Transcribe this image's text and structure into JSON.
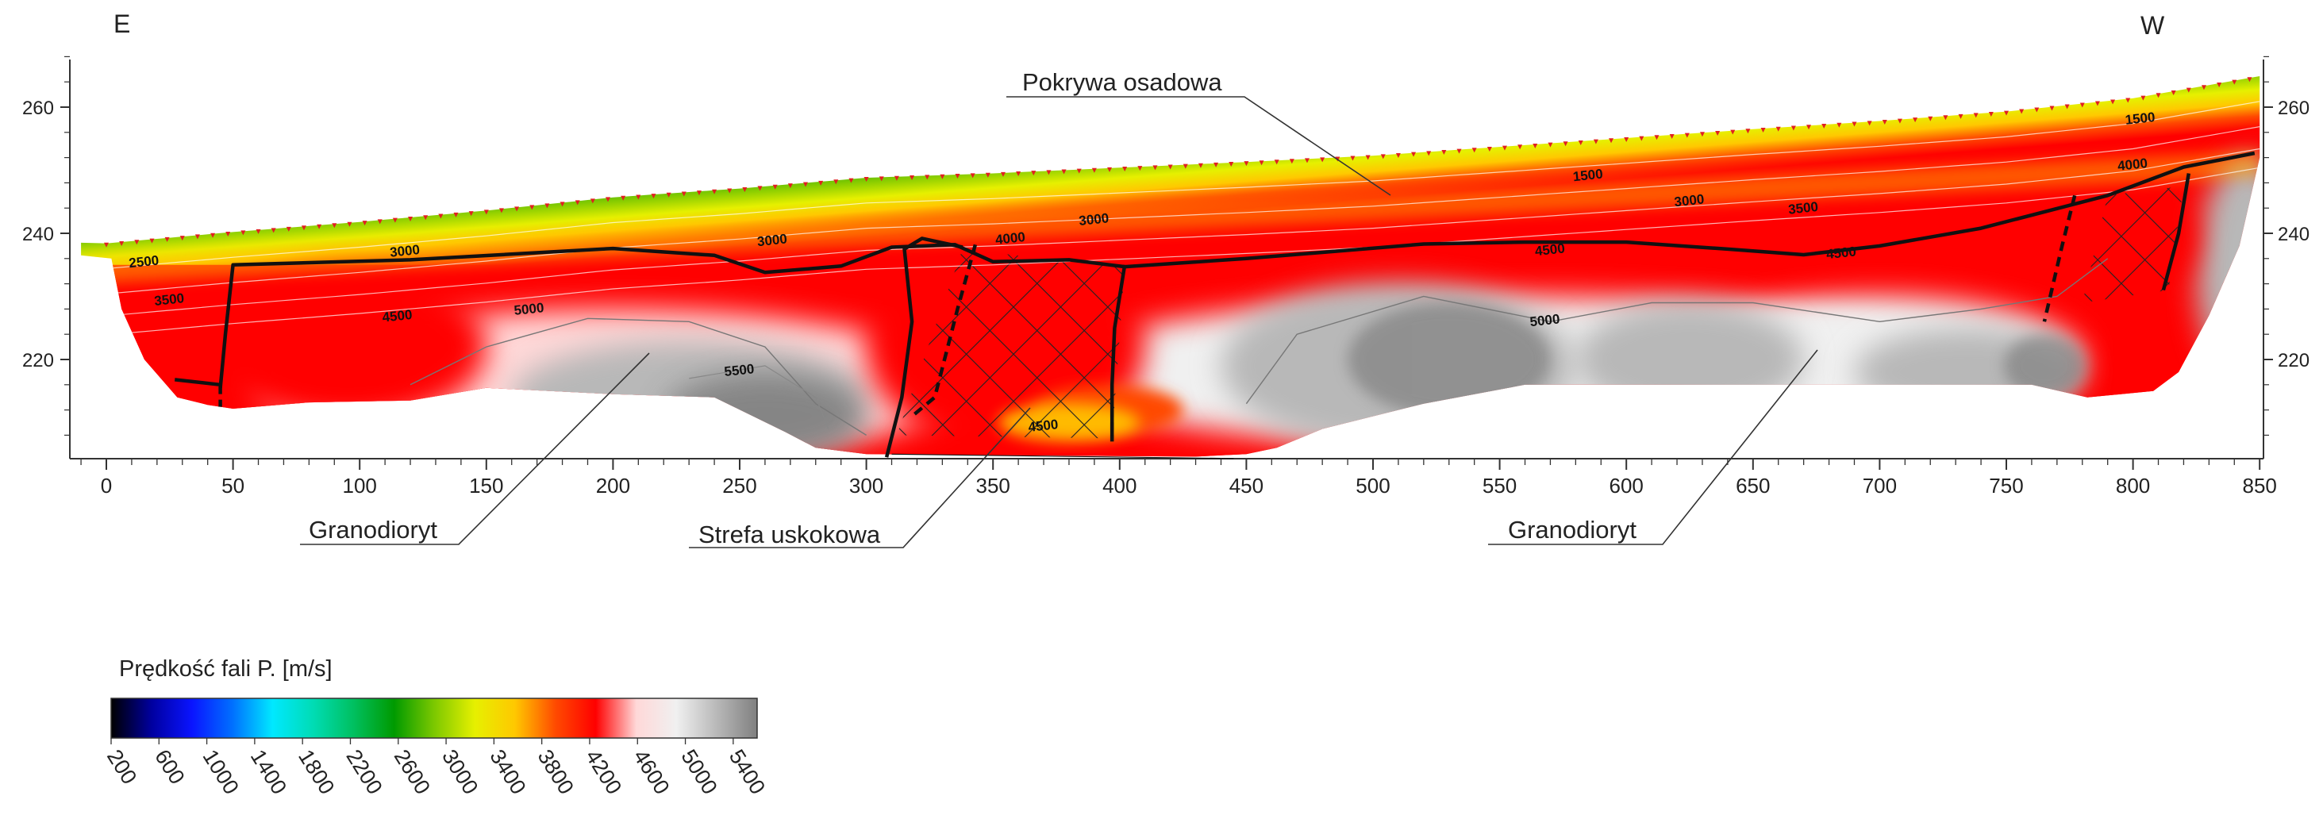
{
  "chart_data": {
    "type": "heatmap",
    "title": "",
    "xlabel": "",
    "ylabel": "",
    "direction_left": "E",
    "direction_right": "W",
    "x_ticks": [
      0,
      50,
      100,
      150,
      200,
      250,
      300,
      350,
      400,
      450,
      500,
      550,
      600,
      650,
      700,
      750,
      800,
      850
    ],
    "y_ticks": [
      220,
      240,
      260
    ],
    "xlim": [
      -10,
      850
    ],
    "ylim": [
      203,
      270
    ],
    "surface": [
      [
        -10,
        238.5
      ],
      [
        0,
        238.4
      ],
      [
        50,
        240.2
      ],
      [
        100,
        241.8
      ],
      [
        150,
        243.6
      ],
      [
        200,
        245.7
      ],
      [
        250,
        247.1
      ],
      [
        300,
        248.8
      ],
      [
        350,
        249.5
      ],
      [
        400,
        250.4
      ],
      [
        450,
        251.3
      ],
      [
        500,
        252.3
      ],
      [
        550,
        253.7
      ],
      [
        600,
        255.1
      ],
      [
        650,
        256.5
      ],
      [
        700,
        257.8
      ],
      [
        750,
        259.3
      ],
      [
        800,
        261.4
      ],
      [
        850,
        264.9
      ]
    ],
    "colorbar": {
      "label": "Prędkość fali P. [m/s]",
      "ticks": [
        "200",
        "600",
        "1000",
        "1400",
        "1800",
        "2200",
        "2600",
        "3000",
        "3400",
        "3800",
        "4200",
        "4600",
        "5000",
        "5400"
      ],
      "range": [
        200,
        5600
      ],
      "colors": [
        "#000000",
        "#0000a0",
        "#0a14ff",
        "#0070ff",
        "#00e8ff",
        "#00dcb4",
        "#00c060",
        "#009a00",
        "#7cc800",
        "#e6f000",
        "#ffc800",
        "#ff4a00",
        "#ff0000",
        "#ffd8d8",
        "#f0f0f0",
        "#b8b8b8",
        "#808080"
      ]
    },
    "contour_labels": [
      {
        "text": "1500",
        "x": 585,
        "y": 248.5
      },
      {
        "text": "1500",
        "x": 803,
        "y": 257.5
      },
      {
        "text": "2500",
        "x": 15,
        "y": 234.8
      },
      {
        "text": "3000",
        "x": 118,
        "y": 236.5
      },
      {
        "text": "3000",
        "x": 263,
        "y": 238.2
      },
      {
        "text": "3000",
        "x": 390,
        "y": 241.5
      },
      {
        "text": "3000",
        "x": 625,
        "y": 244.5
      },
      {
        "text": "3500",
        "x": 25,
        "y": 228.8
      },
      {
        "text": "3500",
        "x": 670,
        "y": 243.3
      },
      {
        "text": "4000",
        "x": 357,
        "y": 238.5
      },
      {
        "text": "4000",
        "x": 800,
        "y": 250.2
      },
      {
        "text": "4500",
        "x": 115,
        "y": 226.2
      },
      {
        "text": "4500",
        "x": 570,
        "y": 236.7
      },
      {
        "text": "4500",
        "x": 685,
        "y": 236.2
      },
      {
        "text": "4500",
        "x": 370,
        "y": 208.8
      },
      {
        "text": "5000",
        "x": 167,
        "y": 227.3
      },
      {
        "text": "5000",
        "x": 568,
        "y": 225.5
      },
      {
        "text": "5500",
        "x": 250,
        "y": 217.6
      }
    ],
    "annotations": [
      {
        "text": "Pokrywa osadowa"
      },
      {
        "text": "Granodioryt"
      },
      {
        "text": "Strefa uskokowa"
      },
      {
        "text": "Granodioryt"
      }
    ]
  }
}
